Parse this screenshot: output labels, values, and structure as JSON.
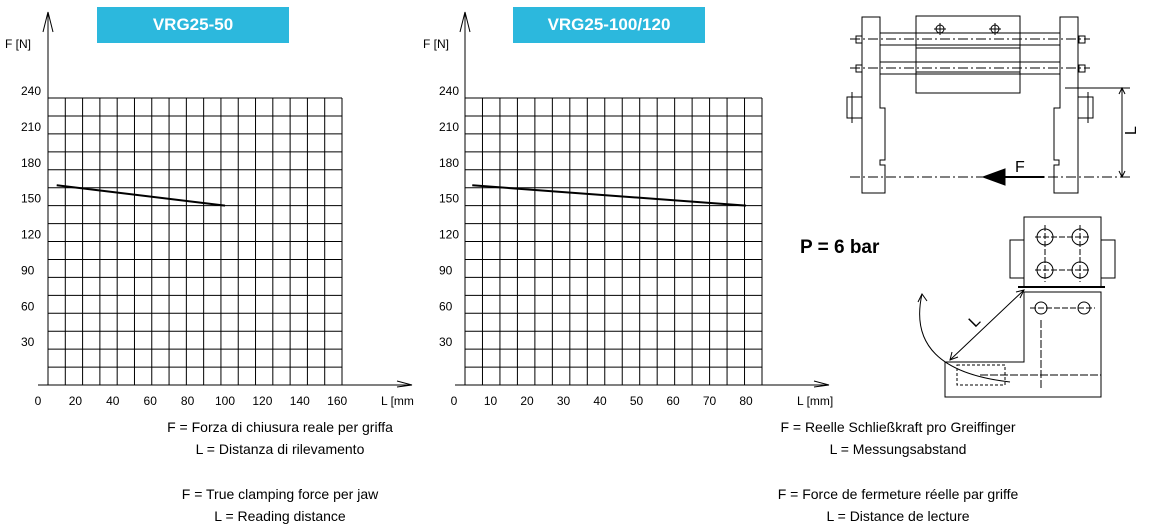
{
  "pressure_label": "P = 6 bar",
  "chart_data": [
    {
      "type": "line",
      "title": "VRG25-50",
      "ylabel": "F [N]",
      "xlabel": "L [mm",
      "xlim": [
        0,
        180
      ],
      "ylim": [
        0,
        255
      ],
      "x_ticks": [
        "0",
        "20",
        "40",
        "60",
        "80",
        "100",
        "120",
        "140",
        "160"
      ],
      "y_ticks": [
        "30",
        "60",
        "90",
        "120",
        "150",
        "180",
        "210",
        "240"
      ],
      "grid": true,
      "series": [
        {
          "x": [
            10,
            100
          ],
          "y": [
            167,
            150
          ]
        }
      ]
    },
    {
      "type": "line",
      "title": "VRG25-100/120",
      "ylabel": "F [N]",
      "xlabel": "L [mm]",
      "xlim": [
        0,
        90
      ],
      "ylim": [
        0,
        255
      ],
      "x_ticks": [
        "0",
        "10",
        "20",
        "30",
        "40",
        "50",
        "60",
        "70",
        "80"
      ],
      "y_ticks": [
        "30",
        "60",
        "90",
        "120",
        "150",
        "180",
        "210",
        "240"
      ],
      "grid": true,
      "series": [
        {
          "x": [
            5,
            80
          ],
          "y": [
            167,
            150
          ]
        }
      ]
    }
  ],
  "captions": {
    "it_f": "F = Forza di chiusura reale per griffa",
    "it_l": "L = Distanza di rilevamento",
    "en_f": "F = True clamping force per jaw",
    "en_l": "L = Reading distance",
    "de_f": "F = Reelle Schließkraft pro Greiffinger",
    "de_l": "L = Messungsabstand",
    "fr_f": "F = Force de fermeture réelle par griffe",
    "fr_l": "L = Distance de lecture"
  },
  "drawing_labels": {
    "force": "F",
    "length": "L"
  }
}
